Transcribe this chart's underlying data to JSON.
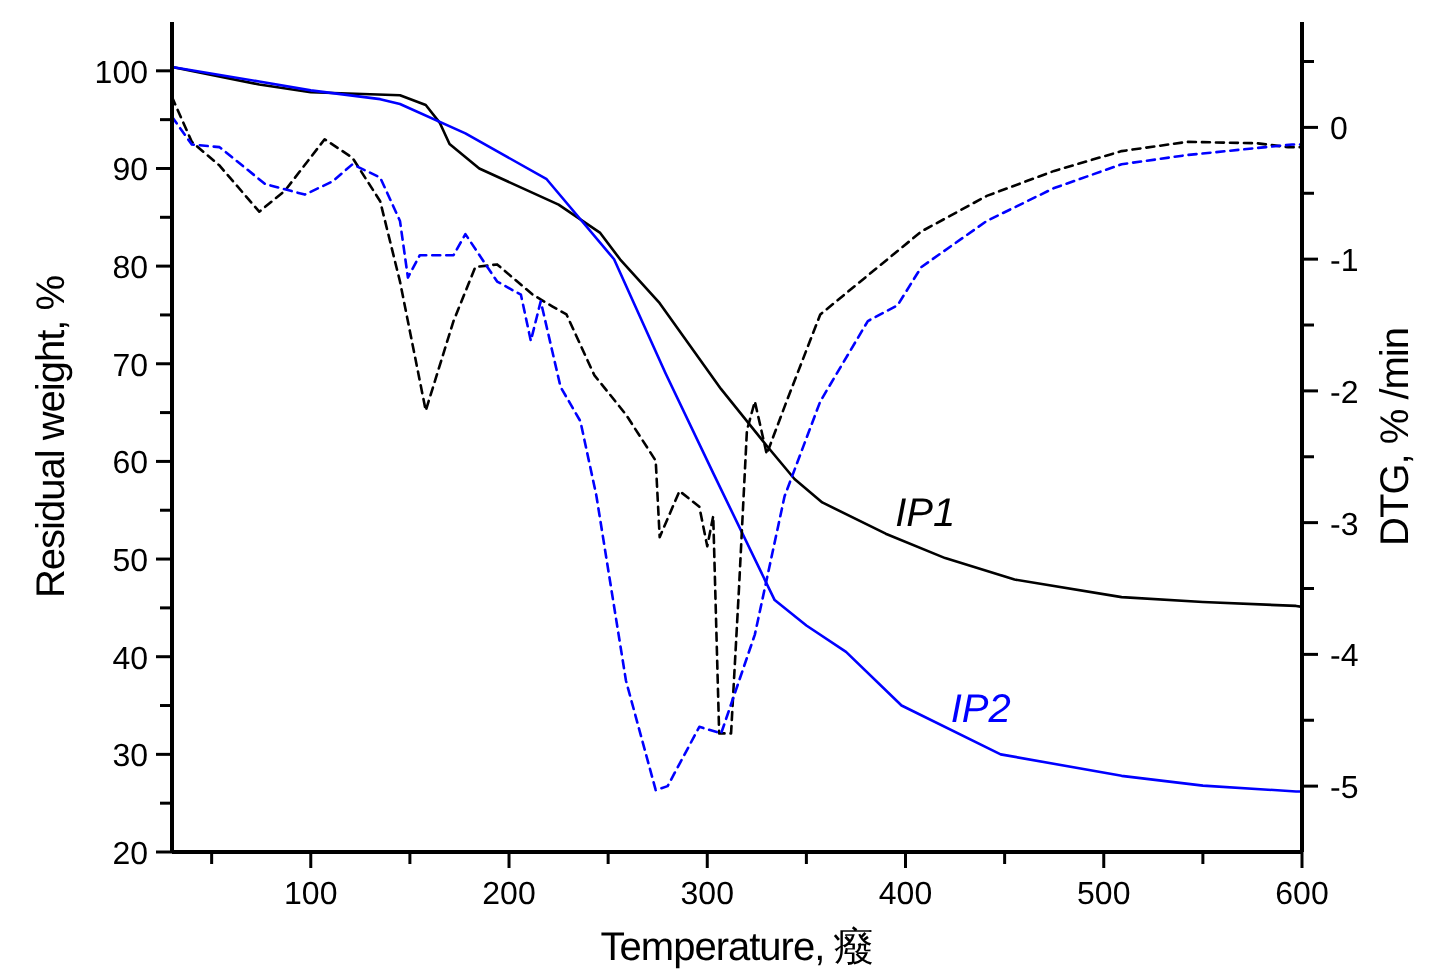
{
  "chart_data": {
    "type": "line",
    "xlabel": "Temperature, 癈",
    "ylabel": "Residual weight, %",
    "y2label": "DTG, % /min",
    "xlim": [
      30,
      600
    ],
    "xticks": [
      {
        "value": 50,
        "label": null
      },
      100,
      {
        "value": 150,
        "label": null
      },
      200,
      {
        "value": 250,
        "label": null
      },
      300,
      {
        "value": 350,
        "label": null
      },
      400,
      {
        "value": 450,
        "label": null
      },
      500,
      {
        "value": 550,
        "label": null
      },
      600
    ],
    "ylim": [
      20,
      105
    ],
    "yticks": [
      20,
      {
        "value": 25,
        "label": null
      },
      30,
      {
        "value": 35,
        "label": null
      },
      40,
      {
        "value": 45,
        "label": null
      },
      50,
      {
        "value": 55,
        "label": null
      },
      60,
      {
        "value": 65,
        "label": null
      },
      70,
      {
        "value": 75,
        "label": null
      },
      80,
      {
        "value": 85,
        "label": null
      },
      90,
      {
        "value": 95,
        "label": null
      },
      100
    ],
    "y2lim": [
      -5.5,
      0.8
    ],
    "y2ticks": [
      {
        "value": 0.5,
        "label": null
      },
      0,
      {
        "value": -0.5,
        "label": null
      },
      -1,
      {
        "value": -1.5,
        "label": null
      },
      -2,
      {
        "value": -2.5,
        "label": null
      },
      -3,
      {
        "value": -3.5,
        "label": null
      },
      -4,
      {
        "value": -4.5,
        "label": null
      },
      -5
    ],
    "grid": false,
    "marker": "none",
    "series": [
      {
        "name": "IP1",
        "color": "#000000",
        "line_style": "solid",
        "x": [
          30,
          74,
          100,
          145,
          158,
          165,
          170,
          185,
          225,
          246,
          256,
          276,
          307,
          330,
          344,
          358,
          390,
          420,
          455,
          509,
          550,
          597,
          600
        ],
        "values": [
          100.4,
          98.6,
          97.8,
          97.5,
          96.5,
          94.7,
          92.5,
          90,
          86.3,
          83.4,
          80.7,
          76.2,
          67.4,
          61.6,
          58.2,
          55.8,
          52.6,
          50.1,
          47.9,
          46.1,
          45.6,
          45.2,
          45.1
        ]
      },
      {
        "name": "IP2",
        "color": "#0000ff",
        "line_style": "solid",
        "x": [
          30,
          74,
          100,
          135,
          145,
          178,
          219,
          253,
          279,
          303,
          334,
          350,
          370,
          398,
          448,
          509,
          550,
          597,
          600
        ],
        "values": [
          100.4,
          98.9,
          98,
          97.1,
          96.6,
          93.6,
          88.9,
          80.7,
          69,
          58.8,
          45.8,
          43.2,
          40.5,
          35,
          30,
          27.8,
          26.8,
          26.2,
          26.2
        ]
      },
      {
        "color": "#000000",
        "line_style": "dashed",
        "axis": "y2",
        "x": [
          30,
          40,
          54,
          74,
          87,
          107,
          121,
          135,
          145,
          158,
          172,
          183,
          194,
          212,
          222,
          229,
          243,
          259,
          274,
          276,
          286,
          296,
          300,
          303,
          306,
          312,
          316,
          320,
          324,
          330,
          340,
          357,
          374,
          408,
          441,
          475,
          509,
          542,
          577,
          593,
          600
        ],
        "values": [
          0.23,
          -0.11,
          -0.29,
          -0.64,
          -0.48,
          -0.09,
          -0.23,
          -0.56,
          -1.17,
          -2.15,
          -1.47,
          -1.06,
          -1.04,
          -1.27,
          -1.36,
          -1.42,
          -1.88,
          -2.18,
          -2.53,
          -3.11,
          -2.76,
          -2.88,
          -3.18,
          -2.95,
          -4.6,
          -4.6,
          -3.5,
          -2.3,
          -2.08,
          -2.48,
          -2.08,
          -1.42,
          -1.21,
          -0.79,
          -0.52,
          -0.33,
          -0.18,
          -0.11,
          -0.12,
          -0.15,
          -0.15
        ]
      },
      {
        "color": "#0000ff",
        "line_style": "dashed",
        "axis": "y2",
        "x": [
          30,
          40,
          54,
          77,
          97,
          111,
          121,
          135,
          145,
          149,
          155,
          172,
          178,
          194,
          206,
          211,
          216,
          226,
          236,
          244,
          259,
          274,
          280,
          296,
          307,
          324,
          339,
          357,
          381,
          396,
          408,
          441,
          475,
          509,
          542,
          595,
          600
        ],
        "values": [
          0.08,
          -0.13,
          -0.15,
          -0.43,
          -0.51,
          -0.41,
          -0.28,
          -0.38,
          -0.71,
          -1.14,
          -0.97,
          -0.97,
          -0.81,
          -1.17,
          -1.27,
          -1.62,
          -1.32,
          -1.97,
          -2.23,
          -2.79,
          -4.2,
          -5.03,
          -5.0,
          -4.55,
          -4.6,
          -3.85,
          -2.8,
          -2.08,
          -1.47,
          -1.35,
          -1.06,
          -0.71,
          -0.46,
          -0.28,
          -0.21,
          -0.13,
          -0.13
        ]
      }
    ]
  }
}
